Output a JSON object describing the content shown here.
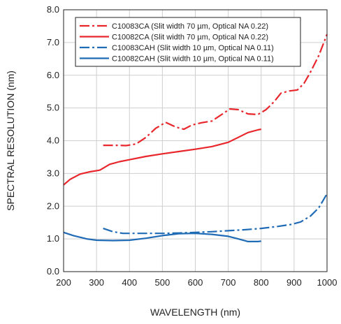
{
  "chart_data": {
    "type": "line",
    "title": "",
    "xlabel": "WAVELENGTH (nm)",
    "ylabel": "SPECTRAL RESOLUTION (nm)",
    "xlim": [
      200,
      1000
    ],
    "ylim": [
      0,
      8
    ],
    "x_ticks": [
      "200",
      "300",
      "400",
      "500",
      "600",
      "700",
      "800",
      "900",
      "1000"
    ],
    "y_ticks": [
      "0.0",
      "1.0",
      "2.0",
      "3.0",
      "4.0",
      "5.0",
      "6.0",
      "7.0",
      "8.0"
    ],
    "grid": true,
    "legend_position": "top-right",
    "series": [
      {
        "name": "C10083CA (Slit width 70 µm, Optical NA 0.22)",
        "color": "#e8262b",
        "dash": "dashdot",
        "points": [
          [
            320,
            3.86
          ],
          [
            360,
            3.86
          ],
          [
            390,
            3.85
          ],
          [
            420,
            3.9
          ],
          [
            450,
            4.1
          ],
          [
            480,
            4.38
          ],
          [
            510,
            4.56
          ],
          [
            540,
            4.42
          ],
          [
            565,
            4.35
          ],
          [
            590,
            4.48
          ],
          [
            620,
            4.55
          ],
          [
            650,
            4.6
          ],
          [
            680,
            4.8
          ],
          [
            705,
            4.97
          ],
          [
            730,
            4.95
          ],
          [
            760,
            4.82
          ],
          [
            790,
            4.8
          ],
          [
            815,
            4.95
          ],
          [
            840,
            5.2
          ],
          [
            860,
            5.45
          ],
          [
            885,
            5.52
          ],
          [
            910,
            5.55
          ],
          [
            930,
            5.75
          ],
          [
            950,
            6.1
          ],
          [
            975,
            6.6
          ],
          [
            1000,
            7.25
          ]
        ]
      },
      {
        "name": "C10082CA (Slit width 70 µm, Optical NA 0.22)",
        "color": "#e8262b",
        "dash": "solid",
        "points": [
          [
            200,
            2.65
          ],
          [
            220,
            2.82
          ],
          [
            250,
            2.98
          ],
          [
            280,
            3.05
          ],
          [
            310,
            3.1
          ],
          [
            340,
            3.28
          ],
          [
            370,
            3.36
          ],
          [
            400,
            3.42
          ],
          [
            450,
            3.52
          ],
          [
            500,
            3.6
          ],
          [
            550,
            3.67
          ],
          [
            600,
            3.74
          ],
          [
            650,
            3.82
          ],
          [
            700,
            3.95
          ],
          [
            730,
            4.1
          ],
          [
            760,
            4.25
          ],
          [
            790,
            4.33
          ],
          [
            800,
            4.35
          ]
        ]
      },
      {
        "name": "C10083CAH (Slit width 10 µm, Optical NA 0.11)",
        "color": "#1f6bb5",
        "dash": "dashdot",
        "points": [
          [
            320,
            1.32
          ],
          [
            350,
            1.22
          ],
          [
            380,
            1.17
          ],
          [
            420,
            1.17
          ],
          [
            460,
            1.17
          ],
          [
            500,
            1.17
          ],
          [
            550,
            1.18
          ],
          [
            600,
            1.2
          ],
          [
            650,
            1.22
          ],
          [
            700,
            1.25
          ],
          [
            750,
            1.28
          ],
          [
            800,
            1.32
          ],
          [
            850,
            1.38
          ],
          [
            890,
            1.44
          ],
          [
            920,
            1.52
          ],
          [
            950,
            1.7
          ],
          [
            975,
            1.95
          ],
          [
            1000,
            2.38
          ]
        ]
      },
      {
        "name": "C10082CAH (Slit width 10 µm, Optical NA 0.11)",
        "color": "#1f6bb5",
        "dash": "solid",
        "points": [
          [
            200,
            1.2
          ],
          [
            230,
            1.1
          ],
          [
            270,
            1.0
          ],
          [
            300,
            0.96
          ],
          [
            350,
            0.95
          ],
          [
            400,
            0.96
          ],
          [
            450,
            1.02
          ],
          [
            500,
            1.1
          ],
          [
            550,
            1.16
          ],
          [
            600,
            1.17
          ],
          [
            650,
            1.14
          ],
          [
            700,
            1.08
          ],
          [
            730,
            1.0
          ],
          [
            760,
            0.92
          ],
          [
            790,
            0.92
          ],
          [
            800,
            0.93
          ]
        ]
      }
    ]
  }
}
